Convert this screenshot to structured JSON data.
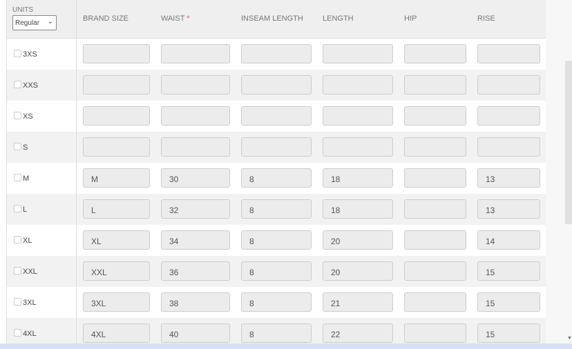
{
  "header": {
    "units_label": "UNITS",
    "units_value": "Regular",
    "columns": [
      "BRAND SIZE",
      "WAIST",
      "INSEAM LENGTH",
      "LENGTH",
      "HIP",
      "RISE"
    ],
    "required_marker": "*"
  },
  "rows": [
    {
      "size": "3XS",
      "values": [
        "",
        "",
        "",
        "",
        "",
        ""
      ]
    },
    {
      "size": "XXS",
      "values": [
        "",
        "",
        "",
        "",
        "",
        ""
      ]
    },
    {
      "size": "XS",
      "values": [
        "",
        "",
        "",
        "",
        "",
        ""
      ]
    },
    {
      "size": "S",
      "values": [
        "",
        "",
        "",
        "",
        "",
        ""
      ]
    },
    {
      "size": "M",
      "values": [
        "M",
        "30",
        "8",
        "18",
        "",
        "13"
      ]
    },
    {
      "size": "L",
      "values": [
        "L",
        "32",
        "8",
        "18",
        "",
        "13"
      ]
    },
    {
      "size": "XL",
      "values": [
        "XL",
        "34",
        "8",
        "20",
        "",
        "14"
      ]
    },
    {
      "size": "XXL",
      "values": [
        "XXL",
        "36",
        "8",
        "20",
        "",
        "15"
      ]
    },
    {
      "size": "3XL",
      "values": [
        "3XL",
        "38",
        "8",
        "21",
        "",
        "15"
      ]
    },
    {
      "size": "4XL",
      "values": [
        "4XL",
        "40",
        "8",
        "22",
        "",
        "15"
      ]
    }
  ]
}
